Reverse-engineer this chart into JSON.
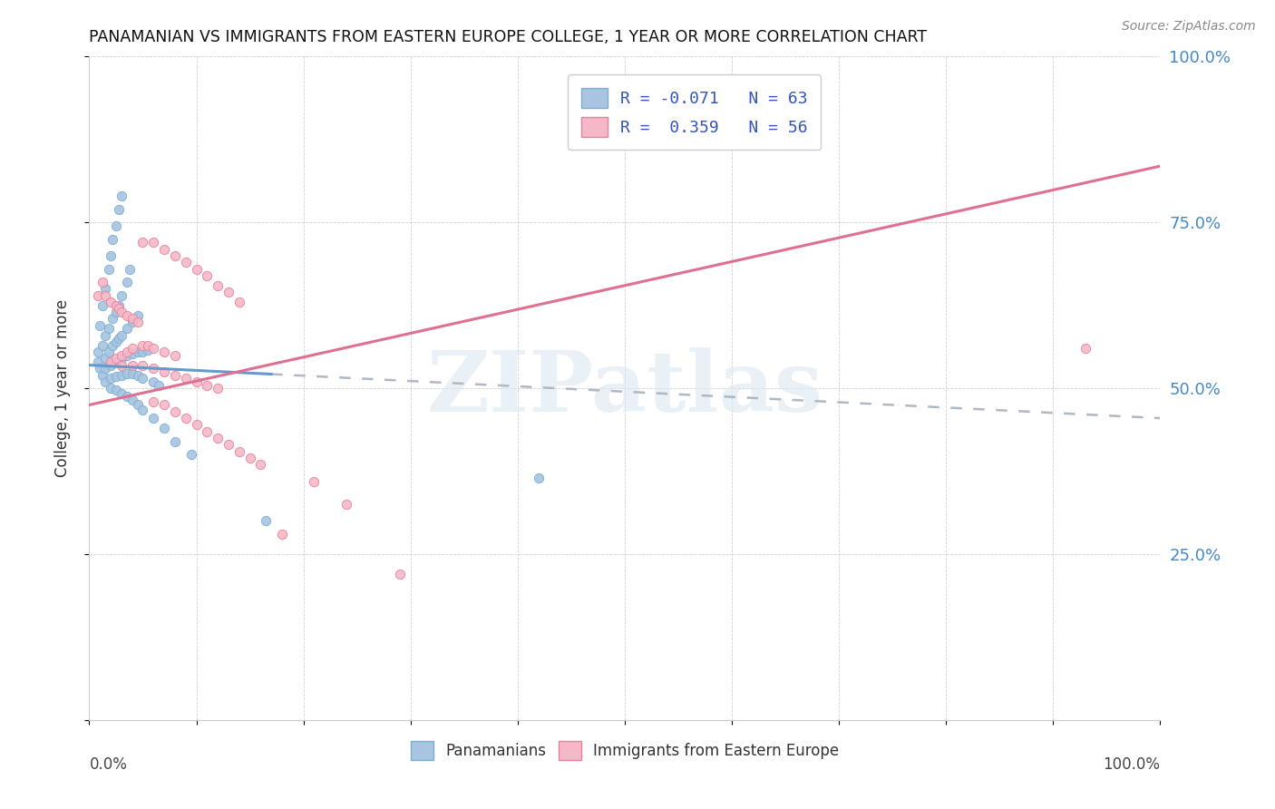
{
  "title": "PANAMANIAN VS IMMIGRANTS FROM EASTERN EUROPE COLLEGE, 1 YEAR OR MORE CORRELATION CHART",
  "source": "Source: ZipAtlas.com",
  "ylabel": "College, 1 year or more",
  "color_blue": "#a8c4e0",
  "color_pink": "#f4b8c8",
  "edge_blue": "#7aafd4",
  "edge_pink": "#e8829a",
  "line_blue_solid": "#6699cc",
  "line_blue_dashed": "#aabbcc",
  "line_pink": "#e07090",
  "watermark_text": "ZIPatlas",
  "watermark_color": "#dce8f0",
  "legend_label1": "R = -0.071   N = 63",
  "legend_label2": "R =  0.359   N = 56",
  "legend_color": "#3355bb",
  "blue_line_x": [
    0.0,
    1.0
  ],
  "blue_line_y": [
    0.535,
    0.455
  ],
  "pink_line_x": [
    0.0,
    1.0
  ],
  "pink_line_y": [
    0.475,
    0.835
  ],
  "blue_x": [
    0.008,
    0.01,
    0.012,
    0.015,
    0.018,
    0.02,
    0.022,
    0.025,
    0.028,
    0.03,
    0.008,
    0.012,
    0.015,
    0.018,
    0.022,
    0.025,
    0.028,
    0.03,
    0.035,
    0.038,
    0.01,
    0.015,
    0.018,
    0.022,
    0.025,
    0.028,
    0.03,
    0.035,
    0.04,
    0.045,
    0.012,
    0.015,
    0.02,
    0.025,
    0.03,
    0.035,
    0.04,
    0.045,
    0.05,
    0.055,
    0.015,
    0.02,
    0.025,
    0.03,
    0.035,
    0.04,
    0.045,
    0.05,
    0.06,
    0.065,
    0.02,
    0.025,
    0.03,
    0.035,
    0.04,
    0.045,
    0.05,
    0.06,
    0.07,
    0.08,
    0.095,
    0.165,
    0.42
  ],
  "blue_y": [
    0.555,
    0.595,
    0.625,
    0.65,
    0.68,
    0.7,
    0.725,
    0.745,
    0.77,
    0.79,
    0.54,
    0.565,
    0.58,
    0.59,
    0.605,
    0.615,
    0.625,
    0.64,
    0.66,
    0.68,
    0.53,
    0.545,
    0.555,
    0.565,
    0.57,
    0.575,
    0.58,
    0.59,
    0.6,
    0.61,
    0.52,
    0.53,
    0.535,
    0.54,
    0.545,
    0.55,
    0.552,
    0.555,
    0.555,
    0.558,
    0.51,
    0.515,
    0.518,
    0.52,
    0.522,
    0.522,
    0.52,
    0.515,
    0.51,
    0.505,
    0.5,
    0.498,
    0.492,
    0.488,
    0.482,
    0.475,
    0.468,
    0.455,
    0.44,
    0.42,
    0.4,
    0.3,
    0.365
  ],
  "pink_x": [
    0.008,
    0.012,
    0.015,
    0.02,
    0.025,
    0.028,
    0.03,
    0.035,
    0.04,
    0.045,
    0.02,
    0.025,
    0.03,
    0.035,
    0.04,
    0.05,
    0.055,
    0.06,
    0.07,
    0.08,
    0.03,
    0.04,
    0.05,
    0.06,
    0.07,
    0.08,
    0.09,
    0.1,
    0.11,
    0.12,
    0.05,
    0.06,
    0.07,
    0.08,
    0.09,
    0.1,
    0.11,
    0.12,
    0.13,
    0.14,
    0.06,
    0.07,
    0.08,
    0.09,
    0.1,
    0.11,
    0.12,
    0.13,
    0.14,
    0.15,
    0.16,
    0.18,
    0.21,
    0.24,
    0.29,
    0.93
  ],
  "pink_y": [
    0.64,
    0.66,
    0.64,
    0.63,
    0.625,
    0.62,
    0.615,
    0.61,
    0.605,
    0.6,
    0.54,
    0.545,
    0.55,
    0.555,
    0.56,
    0.565,
    0.565,
    0.56,
    0.555,
    0.55,
    0.535,
    0.535,
    0.535,
    0.53,
    0.525,
    0.52,
    0.515,
    0.51,
    0.505,
    0.5,
    0.72,
    0.72,
    0.71,
    0.7,
    0.69,
    0.68,
    0.67,
    0.655,
    0.645,
    0.63,
    0.48,
    0.475,
    0.465,
    0.455,
    0.445,
    0.435,
    0.425,
    0.415,
    0.405,
    0.395,
    0.385,
    0.28,
    0.36,
    0.325,
    0.22,
    0.56
  ],
  "xlim": [
    0.0,
    1.0
  ],
  "ylim": [
    0.0,
    1.0
  ],
  "xticks": [
    0.0,
    0.1,
    0.2,
    0.3,
    0.4,
    0.5,
    0.6,
    0.7,
    0.8,
    0.9,
    1.0
  ],
  "yticks": [
    0.0,
    0.25,
    0.5,
    0.75,
    1.0
  ],
  "right_ytick_labels": [
    "",
    "25.0%",
    "50.0%",
    "75.0%",
    "100.0%"
  ],
  "right_ytick_color": "#4488cc"
}
